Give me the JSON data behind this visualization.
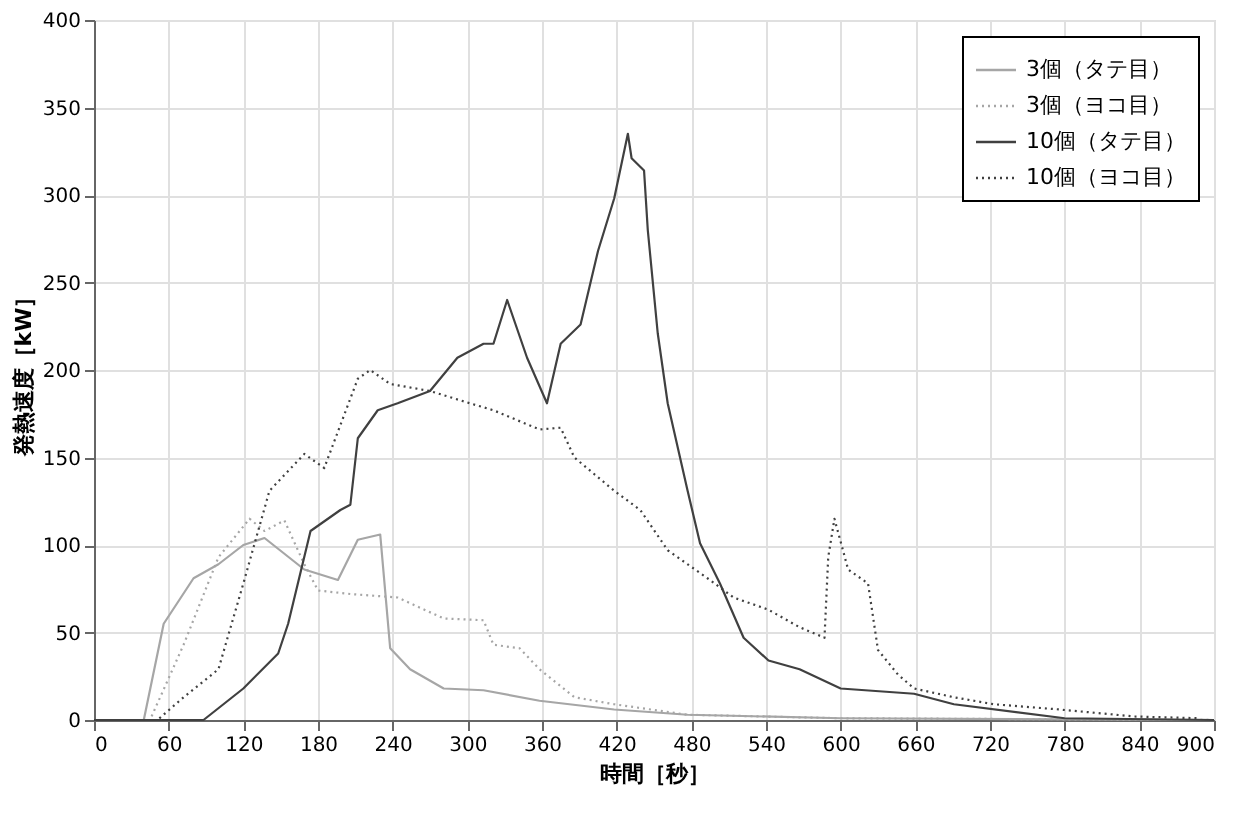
{
  "chart_data": {
    "type": "line",
    "xlabel": "時間［秒］",
    "ylabel": "発熱速度［kW］",
    "xlim": [
      0,
      900
    ],
    "xticks": [
      0,
      60,
      120,
      180,
      240,
      300,
      360,
      420,
      480,
      540,
      600,
      660,
      720,
      780,
      840,
      900
    ],
    "ylim": [
      0,
      400
    ],
    "yticks": [
      0,
      50,
      100,
      150,
      200,
      250,
      300,
      350,
      400
    ],
    "grid": true,
    "legend": "top right",
    "marker": "none",
    "series": [
      {
        "name": "3個（タテ目）",
        "color": "#a6a6a6",
        "line_style": "solid",
        "x": [
          0,
          40,
          56,
          80,
          100,
          120,
          137,
          169,
          196,
          212,
          230,
          238,
          254,
          281,
          313,
          358,
          418,
          477,
          600,
          900
        ],
        "values": [
          0,
          0,
          55,
          81,
          89,
          100,
          104,
          86,
          80,
          103,
          106,
          41,
          29,
          18,
          17,
          11,
          6,
          3,
          1,
          0
        ]
      },
      {
        "name": "3個（ヨコ目）",
        "color": "#a6a6a6",
        "line_style": "dotted",
        "x": [
          0,
          45,
          72,
          100,
          125,
          137,
          153,
          169,
          180,
          206,
          244,
          281,
          313,
          321,
          342,
          358,
          386,
          418,
          477,
          600,
          900
        ],
        "values": [
          0,
          0,
          43,
          93,
          115,
          108,
          114,
          89,
          74,
          72,
          70,
          58,
          57,
          43,
          41,
          29,
          13,
          9,
          3,
          1,
          0
        ]
      },
      {
        "name": "10個（タテ目）",
        "color": "#404040",
        "line_style": "solid",
        "x": [
          0,
          88,
          120,
          148,
          156,
          174,
          198,
          206,
          212,
          228,
          244,
          270,
          292,
          313,
          321,
          332,
          348,
          364,
          375,
          391,
          405,
          418,
          429,
          432,
          442,
          445,
          453,
          461,
          477,
          487,
          503,
          522,
          542,
          567,
          600,
          659,
          691,
          780,
          900
        ],
        "values": [
          0,
          0,
          18,
          38,
          55,
          108,
          120,
          123,
          161,
          177,
          181,
          188,
          207,
          215,
          215,
          240,
          207,
          181,
          215,
          226,
          268,
          298,
          335,
          321,
          314,
          280,
          221,
          181,
          131,
          101,
          78,
          47,
          34,
          29,
          18,
          15,
          9,
          1,
          0
        ]
      },
      {
        "name": "10個（ヨコ目）",
        "color": "#404040",
        "line_style": "dotted",
        "x": [
          0,
          51,
          72,
          100,
          120,
          141,
          169,
          185,
          212,
          222,
          238,
          270,
          302,
          321,
          358,
          375,
          386,
          418,
          439,
          461,
          493,
          514,
          542,
          567,
          587,
          590,
          595,
          606,
          622,
          630,
          646,
          659,
          691,
          723,
          776,
          836,
          889
        ],
        "values": [
          0,
          0,
          13,
          29,
          78,
          131,
          152,
          144,
          195,
          200,
          192,
          188,
          181,
          177,
          166,
          167,
          150,
          131,
          120,
          97,
          81,
          70,
          63,
          53,
          47,
          93,
          115,
          86,
          78,
          40,
          26,
          18,
          13,
          9,
          6,
          2,
          1
        ]
      }
    ]
  }
}
